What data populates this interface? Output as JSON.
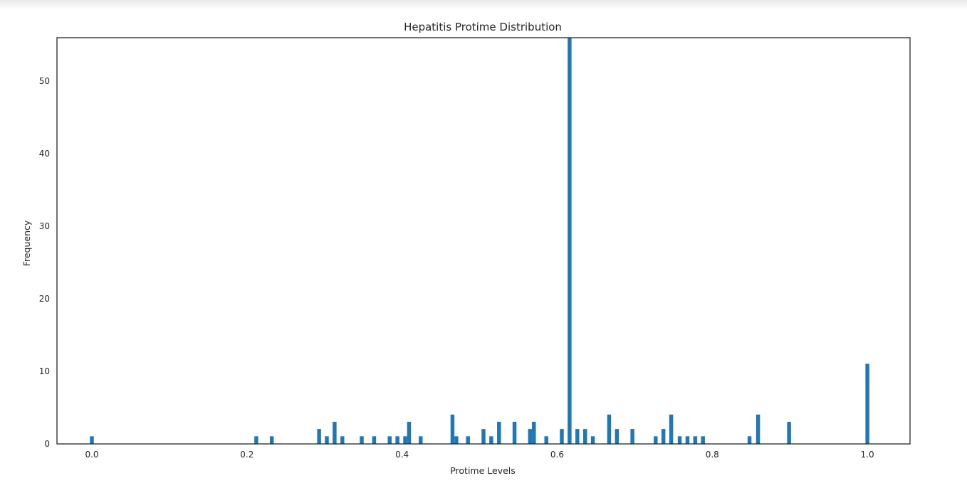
{
  "chart_data": {
    "type": "bar",
    "title": "Hepatitis Protime Distribution",
    "xlabel": "Protime Levels",
    "ylabel": "Frequency",
    "xlim": [
      -0.045,
      1.055
    ],
    "ylim": [
      0,
      56
    ],
    "grid": false,
    "bar_color": "#1f77b4",
    "x_ticks": [
      0.0,
      0.2,
      0.4,
      0.6,
      0.8,
      1.0
    ],
    "x_tick_labels": [
      "0.0",
      "0.2",
      "0.4",
      "0.6",
      "0.8",
      "1.0"
    ],
    "y_ticks": [
      0,
      10,
      20,
      30,
      40,
      50
    ],
    "y_tick_labels": [
      "0",
      "10",
      "20",
      "30",
      "40",
      "50"
    ],
    "bin_width": 0.005,
    "x": [
      0.0,
      0.212,
      0.232,
      0.293,
      0.303,
      0.313,
      0.323,
      0.348,
      0.364,
      0.384,
      0.394,
      0.404,
      0.409,
      0.424,
      0.465,
      0.47,
      0.485,
      0.505,
      0.515,
      0.525,
      0.545,
      0.565,
      0.57,
      0.586,
      0.606,
      0.616,
      0.626,
      0.636,
      0.646,
      0.667,
      0.677,
      0.697,
      0.727,
      0.737,
      0.747,
      0.758,
      0.768,
      0.778,
      0.788,
      0.848,
      0.859,
      0.899,
      1.0
    ],
    "values": [
      1,
      1,
      1,
      2,
      1,
      3,
      1,
      1,
      1,
      1,
      1,
      1,
      3,
      1,
      4,
      1,
      1,
      2,
      1,
      3,
      3,
      2,
      3,
      1,
      2,
      56,
      2,
      2,
      1,
      4,
      2,
      2,
      1,
      2,
      4,
      1,
      1,
      1,
      1,
      1,
      4,
      3,
      11
    ]
  }
}
